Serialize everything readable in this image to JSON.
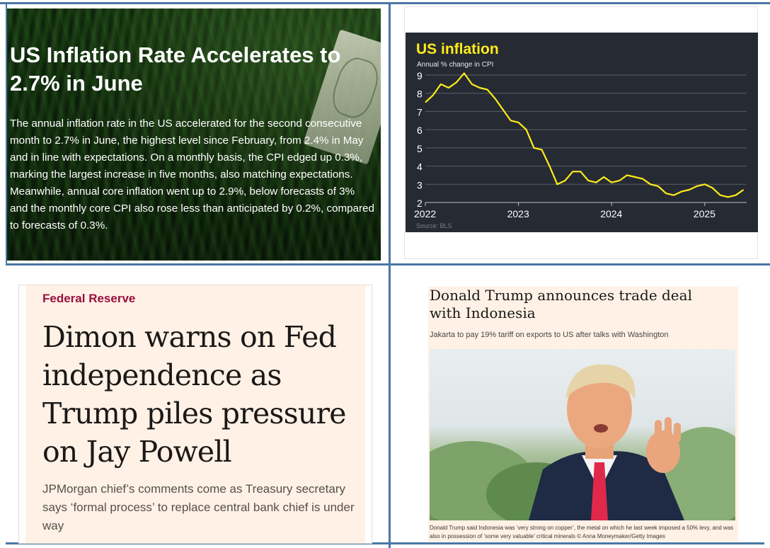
{
  "panel1": {
    "title": "US Inflation Rate Accelerates to 2.7% in June",
    "body": "The annual inflation rate in the US accelerated for the second consecutive month to 2.7% in June, the highest level since February, from 2.4% in May and in line with expectations. On a monthly basis, the CPI edged up 0.3%, marking the largest increase in five months, also matching expectations. Meanwhile, annual core inflation went up to 2.9%, below forecasts of 3% and the monthly core CPI also rose less than anticipated by 0.2%, compared to forecasts of 0.3%."
  },
  "panel2": {
    "source": "Source: BLS",
    "colors": {
      "background": "#262a33",
      "line": "#ffec1a",
      "title": "#ffec1a"
    }
  },
  "chart_data": {
    "type": "line",
    "title": "US inflation",
    "subtitle": "Annual % change in CPI",
    "xlabel": "",
    "ylabel": "",
    "ylim": [
      2,
      9
    ],
    "yticks": [
      "9",
      "8",
      "7",
      "6",
      "5",
      "4",
      "3",
      "2"
    ],
    "xticks": [
      "2022",
      "2023",
      "2024",
      "2025"
    ],
    "grid": true,
    "series": [
      {
        "x": [
          "2022-01",
          "2022-02",
          "2022-03",
          "2022-04",
          "2022-05",
          "2022-06",
          "2022-07",
          "2022-08",
          "2022-09",
          "2022-10",
          "2022-11",
          "2022-12",
          "2023-01",
          "2023-02",
          "2023-03",
          "2023-04",
          "2023-05",
          "2023-06",
          "2023-07",
          "2023-08",
          "2023-09",
          "2023-10",
          "2023-11",
          "2023-12",
          "2024-01",
          "2024-02",
          "2024-03",
          "2024-04",
          "2024-05",
          "2024-06",
          "2024-07",
          "2024-08",
          "2024-09",
          "2024-10",
          "2024-11",
          "2024-12",
          "2025-01",
          "2025-02",
          "2025-03",
          "2025-04",
          "2025-05",
          "2025-06"
        ],
        "values": [
          7.5,
          7.9,
          8.5,
          8.3,
          8.6,
          9.1,
          8.5,
          8.3,
          8.2,
          7.7,
          7.1,
          6.5,
          6.4,
          6.0,
          5.0,
          4.9,
          4.0,
          3.0,
          3.2,
          3.7,
          3.7,
          3.2,
          3.1,
          3.4,
          3.1,
          3.2,
          3.5,
          3.4,
          3.3,
          3.0,
          2.9,
          2.5,
          2.4,
          2.6,
          2.7,
          2.9,
          3.0,
          2.8,
          2.4,
          2.3,
          2.4,
          2.7
        ]
      }
    ]
  },
  "panel3": {
    "kicker": "Federal Reserve",
    "headline": "Dimon warns on Fed independence as Trump piles pressure on Jay Powell",
    "standfirst": "JPMorgan chief’s comments come as Treasury secretary says ‘formal process’ to replace central bank chief is under way"
  },
  "panel4": {
    "headline": "Donald Trump announces trade deal with Indonesia",
    "standfirst": "Jakarta to pay 19% tariff on exports to US after talks with Washington",
    "caption": "Donald Trump said Indonesia was ‘very strong on copper’, the metal on which he last week imposed a 50% levy, and was also in possession of ‘some very valuable’ critical minerals © Anna Moneymaker/Getty Images"
  }
}
